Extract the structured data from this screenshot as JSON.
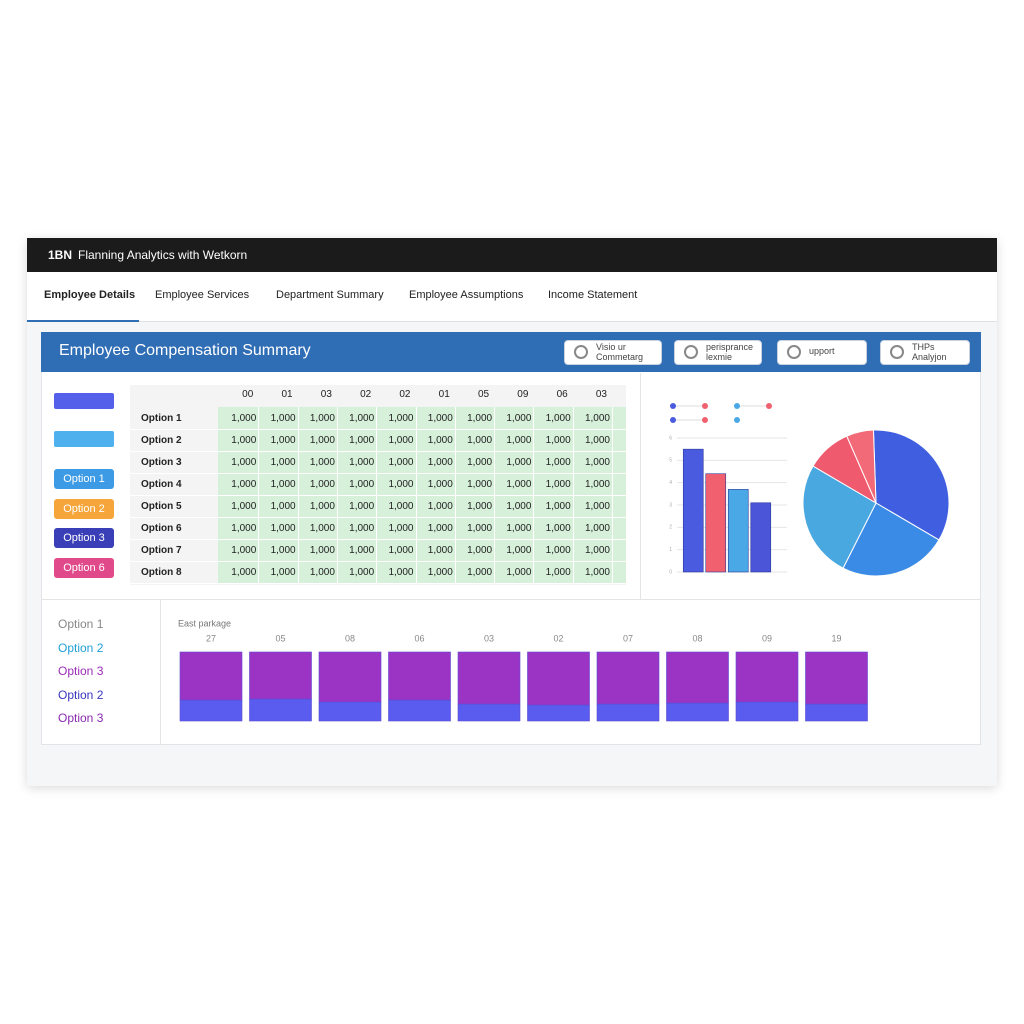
{
  "header": {
    "logo": "1BN",
    "title": "Flanning Analytics with Wetkorn"
  },
  "tabs": {
    "items": [
      "Employee Details",
      "Employee Services",
      "Department Summary",
      "Employee Assumptions",
      "Income Statement"
    ],
    "active": 0
  },
  "panel": {
    "title": "Employee Compensation Summary",
    "buttons": [
      {
        "lines": [
          "Visio ur",
          "Commetarg"
        ]
      },
      {
        "lines": [
          "perisprance",
          "lexmie"
        ]
      },
      {
        "lines": [
          "upport"
        ]
      },
      {
        "lines": [
          "THPs",
          "Analyjon"
        ]
      }
    ]
  },
  "swatches": [
    "#5560ea",
    "#4fb0ee"
  ],
  "options": [
    {
      "label": "Option 1",
      "color": "#3d9be6"
    },
    {
      "label": "Option 2",
      "color": "#f5a53a"
    },
    {
      "label": "Option 3",
      "color": "#3a3fb8"
    },
    {
      "label": "Option 6",
      "color": "#e04a8a"
    }
  ],
  "table": {
    "columns": [
      "00",
      "01",
      "03",
      "02",
      "02",
      "01",
      "05",
      "09",
      "06",
      "03"
    ],
    "rows": [
      {
        "label": "Option 1",
        "cells": [
          "1,000",
          "1,000",
          "1,000",
          "1,000",
          "1,000",
          "1,000",
          "1,000",
          "1,000",
          "1,000",
          "1,000"
        ]
      },
      {
        "label": "Option 2",
        "cells": [
          "1,000",
          "1,000",
          "1,000",
          "1,000",
          "1,000",
          "1,000",
          "1,000",
          "1,000",
          "1,000",
          "1,000"
        ]
      },
      {
        "label": "Option 3",
        "cells": [
          "1,000",
          "1,000",
          "1,000",
          "1,000",
          "1,000",
          "1,000",
          "1,000",
          "1,000",
          "1,000",
          "1,000"
        ]
      },
      {
        "label": "Option 4",
        "cells": [
          "1,000",
          "1,000",
          "1,000",
          "1,000",
          "1,000",
          "1,000",
          "1,000",
          "1,000",
          "1,000",
          "1,000"
        ]
      },
      {
        "label": "Option 5",
        "cells": [
          "1,000",
          "1,000",
          "1,000",
          "1,000",
          "1,000",
          "1,000",
          "1,000",
          "1,000",
          "1,000",
          "1,000"
        ]
      },
      {
        "label": "Option 6",
        "cells": [
          "1,000",
          "1,000",
          "1,000",
          "1,000",
          "1,000",
          "1,000",
          "1,000",
          "1,000",
          "1,000",
          "1,000"
        ]
      },
      {
        "label": "Option 7",
        "cells": [
          "1,000",
          "1,000",
          "1,000",
          "1,000",
          "1,000",
          "1,000",
          "1,000",
          "1,000",
          "1,000",
          "1,000"
        ]
      },
      {
        "label": "Option 8",
        "cells": [
          "1,000",
          "1,000",
          "1,000",
          "1,000",
          "1,000",
          "1,000",
          "1,000",
          "1,000",
          "1,000",
          "1,000"
        ]
      }
    ]
  },
  "chart_data": [
    {
      "type": "bar",
      "values": [
        5.5,
        4.4,
        3.7,
        3.1
      ],
      "colors": [
        "#4a5be0",
        "#f0606e",
        "#4aa8e6",
        "#4a55d8"
      ],
      "ylim": [
        0,
        6
      ],
      "yticks": [
        0,
        1,
        2,
        3,
        4,
        5,
        6
      ],
      "grid": true
    },
    {
      "type": "pie",
      "values": [
        34,
        24,
        26,
        10,
        6
      ],
      "colors": [
        "#3f5fe0",
        "#3a8be6",
        "#4aa8e0",
        "#ef5a6e",
        "#f26a78"
      ]
    },
    {
      "type": "stacked_bar",
      "title": "East parkage",
      "categories": [
        "27",
        "05",
        "08",
        "06",
        "03",
        "02",
        "07",
        "08",
        "09",
        "19"
      ],
      "series": [
        {
          "color": "#5a5cf0",
          "values": [
            21,
            22,
            19,
            21,
            17,
            16,
            17,
            18,
            19,
            17
          ]
        },
        {
          "color": "#9b34c4",
          "values": [
            48,
            47,
            50,
            48,
            52,
            53,
            52,
            51,
            50,
            52
          ]
        }
      ],
      "ylim": [
        0,
        80
      ]
    }
  ],
  "list": [
    {
      "label": "Option 1",
      "color": "#888888"
    },
    {
      "label": "Option 2",
      "color": "#1fa0d8"
    },
    {
      "label": "Option 3",
      "color": "#9b2bb8"
    },
    {
      "label": "Option 2",
      "color": "#3a35c0"
    },
    {
      "label": "Option 3",
      "color": "#8a2ab0"
    }
  ]
}
